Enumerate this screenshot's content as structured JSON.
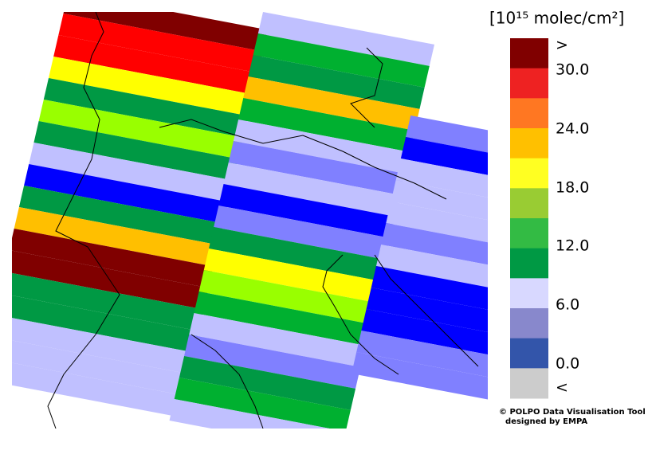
{
  "legend": {
    "title": "[10¹⁵ molec/cm²]",
    "labels": [
      ">",
      "30.0",
      "24.0",
      "18.0",
      "12.0",
      "6.0",
      "0.0",
      "<"
    ]
  },
  "credits": [
    "© POLPO Data Visualisation Tool",
    "designed by EMPA"
  ]
}
